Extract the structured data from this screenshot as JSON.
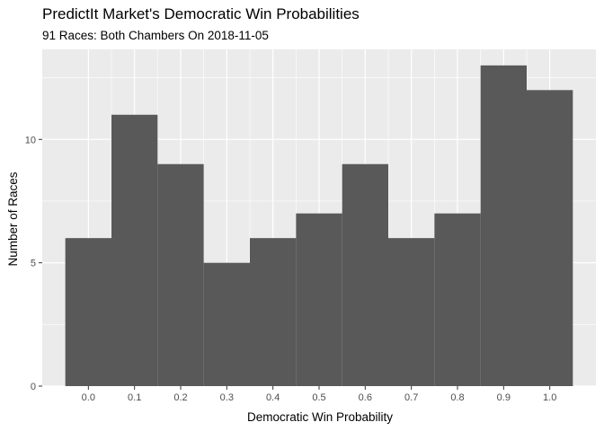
{
  "chart_data": {
    "type": "bar",
    "title": "PredictIt Market's Democratic Win Probabilities",
    "subtitle": "91 Races: Both Chambers On 2018-11-05",
    "xlabel": "Democratic Win Probability",
    "ylabel": "Number of Races",
    "bin_width": 0.1,
    "categories": [
      "0.0",
      "0.1",
      "0.2",
      "0.3",
      "0.4",
      "0.5",
      "0.6",
      "0.7",
      "0.8",
      "0.9",
      "1.0"
    ],
    "values": [
      6,
      11,
      9,
      5,
      6,
      7,
      9,
      6,
      7,
      13,
      12
    ],
    "x_ticks": [
      "0.0",
      "0.1",
      "0.2",
      "0.3",
      "0.4",
      "0.5",
      "0.6",
      "0.7",
      "0.8",
      "0.9",
      "1.0"
    ],
    "y_ticks": [
      0,
      5,
      10
    ],
    "xlim": [
      -0.1,
      1.1
    ],
    "ylim": [
      0,
      13.65
    ],
    "grid": true,
    "colors": {
      "bar": "#595959",
      "panel": "#ebebeb",
      "grid": "#ffffff"
    }
  }
}
